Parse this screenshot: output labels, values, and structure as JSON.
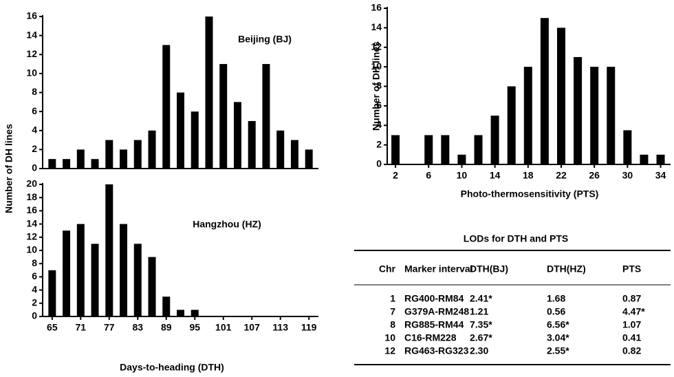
{
  "chart_data": [
    {
      "type": "bar",
      "annotation": "Beijing (BJ)",
      "ylabel": "Number of DH lines",
      "x": [
        65,
        68,
        71,
        74,
        77,
        80,
        83,
        86,
        89,
        92,
        95,
        98,
        101,
        104,
        107,
        110,
        113,
        116,
        119
      ],
      "values": [
        1,
        1,
        2,
        1,
        3,
        2,
        3,
        4,
        13,
        8,
        6,
        16,
        11,
        7,
        5,
        11,
        4,
        3,
        2
      ],
      "color": "#000000",
      "xlim": [
        63,
        121
      ],
      "ylim": [
        0,
        16
      ],
      "yticks": [
        0,
        2,
        4,
        6,
        8,
        10,
        12,
        14,
        16
      ]
    },
    {
      "type": "bar",
      "annotation": "Hangzhou (HZ)",
      "xlabel": "Days-to-heading (DTH)",
      "x": [
        65,
        68,
        71,
        74,
        77,
        80,
        83,
        86,
        89,
        92,
        95
      ],
      "values": [
        7,
        13,
        14,
        11,
        20,
        14,
        11,
        9,
        3,
        1,
        1
      ],
      "color": "#000000",
      "xlim": [
        63,
        121
      ],
      "ylim": [
        0,
        20
      ],
      "yticks": [
        0,
        2,
        4,
        6,
        8,
        10,
        12,
        14,
        16,
        18,
        20
      ],
      "xticks": [
        65,
        71,
        77,
        83,
        89,
        95,
        101,
        107,
        113,
        119
      ]
    },
    {
      "type": "bar",
      "xlabel": "Photo-thermosensitivity (PTS)",
      "ylabel": "Number of DH lines",
      "x": [
        2,
        4,
        6,
        8,
        10,
        12,
        14,
        16,
        18,
        20,
        22,
        24,
        26,
        28,
        30,
        32,
        34
      ],
      "values": [
        3,
        0,
        3,
        3,
        1,
        3,
        5,
        8,
        10,
        15,
        14,
        11,
        10,
        10,
        3.5,
        1,
        1
      ],
      "color": "#000000",
      "xlim": [
        1,
        35.2
      ],
      "ylim": [
        0,
        16
      ],
      "yticks": [
        0,
        2,
        4,
        6,
        8,
        10,
        12,
        14,
        16
      ],
      "xticks": [
        2,
        6,
        10,
        14,
        18,
        22,
        26,
        30,
        34
      ]
    }
  ],
  "table": {
    "title": "LODs for DTH and PTS",
    "header": [
      "Chr",
      "Marker interval",
      "DTH(BJ)",
      "DTH(HZ)",
      "PTS"
    ],
    "rows": [
      [
        "1",
        "RG400-RM84",
        "2.41*",
        "1.68",
        "0.87"
      ],
      [
        "7",
        "G379A-RM248",
        "1.21",
        "0.56",
        "4.47*"
      ],
      [
        "8",
        "RG885-RM44",
        "7.35*",
        "6.56*",
        "1.07"
      ],
      [
        "10",
        "C16-RM228",
        "2.67*",
        "3.04*",
        "0.41"
      ],
      [
        "12",
        "RG463-RG323",
        "2.30",
        "2.55*",
        "0.82"
      ]
    ]
  }
}
